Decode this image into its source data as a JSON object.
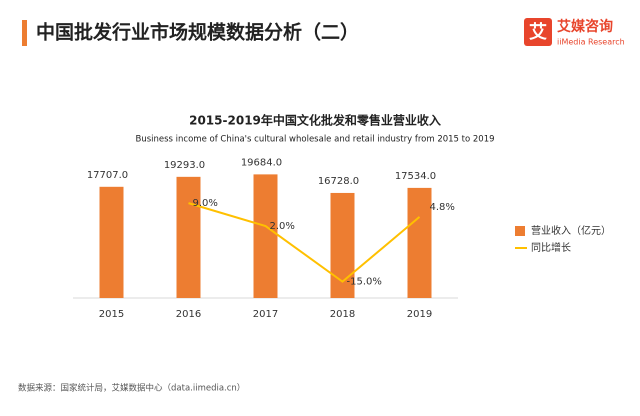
{
  "header": {
    "title": "中国批发行业市场规模数据分析（二）",
    "logo_mark": "艾",
    "logo_name": "艾媒咨询",
    "logo_sub": "iiMedia Research"
  },
  "chart_data": {
    "type": "bar",
    "title": "2015-2019年中国文化批发和零售业营业收入",
    "subtitle": "Business income of China's cultural wholesale and retail industry from 2015 to 2019",
    "categories": [
      "2015",
      "2016",
      "2017",
      "2018",
      "2019"
    ],
    "series": [
      {
        "name": "营业收入（亿元）",
        "type": "bar",
        "color": "#ed7d31",
        "values": [
          17707.0,
          19293.0,
          19684.0,
          16728.0,
          17534.0
        ],
        "value_labels": [
          "17707.0",
          "19293.0",
          "19684.0",
          "16728.0",
          "17534.0"
        ]
      },
      {
        "name": "同比增长",
        "type": "line",
        "axis": "y2",
        "color": "#ffc000",
        "values": [
          null,
          9.0,
          2.0,
          -15.0,
          4.8
        ],
        "value_labels": [
          null,
          "9.0%",
          "2.0%",
          "-15.0%",
          "4.8%"
        ]
      }
    ],
    "ylim": [
      0,
      25000
    ],
    "y2lim": [
      -20,
      28
    ],
    "legend": "right"
  },
  "footer": {
    "source": "数据来源：国家统计局，艾媒数据中心（data.iimedia.cn）"
  }
}
